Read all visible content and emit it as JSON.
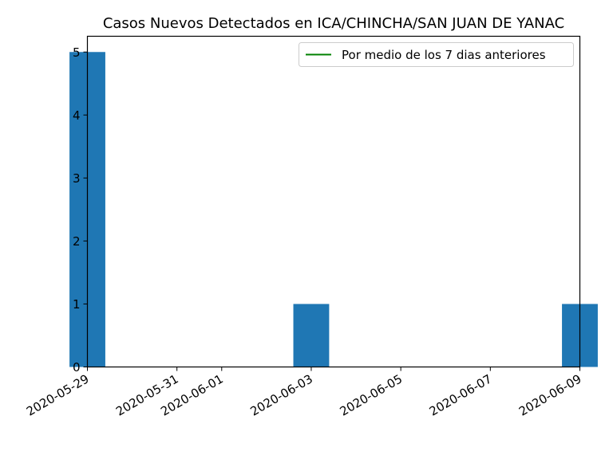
{
  "chart_data": {
    "type": "bar",
    "title": "Casos Nuevos Detectados en ICA/CHINCHA/SAN JUAN DE YANAC",
    "xlabel": "",
    "ylabel": "",
    "x_ticks": [
      "2020-05-29",
      "2020-05-31",
      "2020-06-01",
      "2020-06-03",
      "2020-06-05",
      "2020-06-07",
      "2020-06-09"
    ],
    "y_ticks": [
      "0",
      "1",
      "2",
      "3",
      "4",
      "5"
    ],
    "xlim": [
      "2020-05-29",
      "2020-06-09"
    ],
    "ylim": [
      0,
      5.25
    ],
    "bars": [
      {
        "date": "2020-05-29",
        "value": 5
      },
      {
        "date": "2020-06-03",
        "value": 1
      },
      {
        "date": "2020-06-09",
        "value": 1
      }
    ],
    "series": [
      {
        "name": "Por medio de los 7 dias anteriores",
        "type": "line",
        "color": "#008000",
        "values": []
      }
    ],
    "bar_color": "#1f77b4",
    "legend_position": "top-right",
    "grid": false
  }
}
